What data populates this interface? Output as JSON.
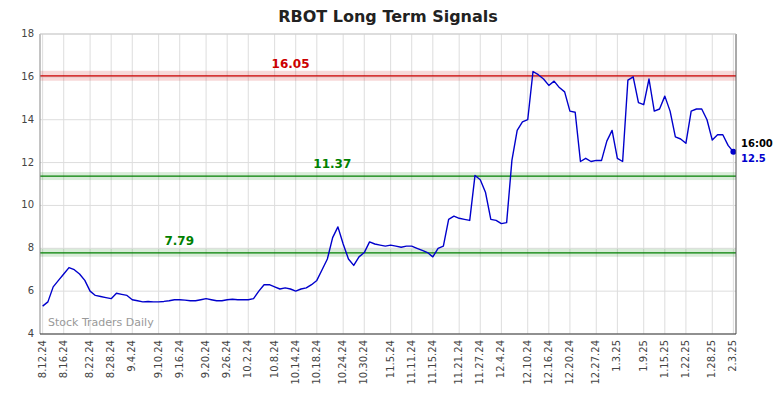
{
  "chart_data": {
    "type": "line",
    "title": "RBOT Long Term Signals",
    "watermark": "Stock Traders Daily",
    "categories": [
      "8.12.24",
      null,
      null,
      null,
      "8.16.24",
      null,
      null,
      null,
      null,
      "8.22.24",
      null,
      null,
      null,
      "8.28.24",
      null,
      null,
      null,
      "9.4.24",
      null,
      null,
      null,
      null,
      "9.10.24",
      null,
      null,
      null,
      "9.16.24",
      null,
      null,
      null,
      null,
      "9.20.24",
      null,
      null,
      null,
      "9.26.24",
      null,
      null,
      null,
      "10.2.24",
      null,
      null,
      null,
      null,
      "10.8.24",
      null,
      null,
      null,
      "10.14.24",
      null,
      null,
      null,
      "10.18.24",
      null,
      null,
      null,
      null,
      "10.24.24",
      null,
      null,
      null,
      "10.30.24",
      null,
      null,
      null,
      null,
      "11.5.24",
      null,
      null,
      null,
      "11.11.24",
      null,
      null,
      null,
      "11.15.24",
      null,
      null,
      null,
      null,
      "11.21.24",
      null,
      null,
      null,
      "11.27.24",
      null,
      null,
      null,
      "12.4.24",
      null,
      null,
      null,
      null,
      "12.10.24",
      null,
      null,
      null,
      "12.16.24",
      null,
      null,
      null,
      "12.20.24",
      null,
      null,
      null,
      null,
      "12.27.24",
      null,
      null,
      null,
      "1.3.25",
      null,
      null,
      null,
      null,
      "1.9.25",
      null,
      null,
      null,
      "1.15.25",
      null,
      null,
      null,
      "1.22.25",
      null,
      null,
      null,
      null,
      "1.28.25",
      null,
      null,
      null,
      "2.3.25"
    ],
    "series": [
      {
        "name": "RBOT",
        "color": "#0000cc",
        "values": [
          5.3,
          5.5,
          6.2,
          6.5,
          6.8,
          7.1,
          7.0,
          6.8,
          6.5,
          6.0,
          5.8,
          5.75,
          5.7,
          5.65,
          5.9,
          5.85,
          5.8,
          5.6,
          5.55,
          5.5,
          5.52,
          5.5,
          5.5,
          5.52,
          5.55,
          5.6,
          5.6,
          5.58,
          5.55,
          5.55,
          5.6,
          5.65,
          5.6,
          5.55,
          5.55,
          5.6,
          5.62,
          5.6,
          5.6,
          5.6,
          5.65,
          6.0,
          6.3,
          6.3,
          6.2,
          6.1,
          6.15,
          6.1,
          6.0,
          6.1,
          6.15,
          6.3,
          6.5,
          7.0,
          7.5,
          8.5,
          9.0,
          8.2,
          7.5,
          7.2,
          7.6,
          7.8,
          8.3,
          8.2,
          8.15,
          8.1,
          8.15,
          8.1,
          8.05,
          8.1,
          8.1,
          8.0,
          7.9,
          7.8,
          7.6,
          8.0,
          8.1,
          9.35,
          9.5,
          9.4,
          9.35,
          9.3,
          11.4,
          11.2,
          10.6,
          9.35,
          9.3,
          9.15,
          9.2,
          12.1,
          13.5,
          13.9,
          14.0,
          16.25,
          16.1,
          15.9,
          15.6,
          15.8,
          15.5,
          15.3,
          14.4,
          14.35,
          12.05,
          12.2,
          12.05,
          12.1,
          12.1,
          13.0,
          13.5,
          12.2,
          12.05,
          15.85,
          16.0,
          14.8,
          14.7,
          15.9,
          14.4,
          14.5,
          15.1,
          14.4,
          13.2,
          13.1,
          12.9,
          14.4,
          14.5,
          14.5,
          14.0,
          13.05,
          13.3,
          13.3,
          12.8,
          12.5
        ]
      }
    ],
    "reference_lines": [
      {
        "value": 16.05,
        "label": "16.05",
        "color": "#cc0000"
      },
      {
        "value": 11.37,
        "label": "11.37",
        "color": "#008000"
      },
      {
        "value": 7.79,
        "label": "7.79",
        "color": "#008000"
      }
    ],
    "last_point": {
      "time_label": "16:00",
      "value": 12.5,
      "label": "12.5"
    },
    "ylim": [
      4,
      18
    ],
    "yticks": [
      4,
      6,
      8,
      10,
      12,
      14,
      16,
      18
    ],
    "grid": true
  }
}
